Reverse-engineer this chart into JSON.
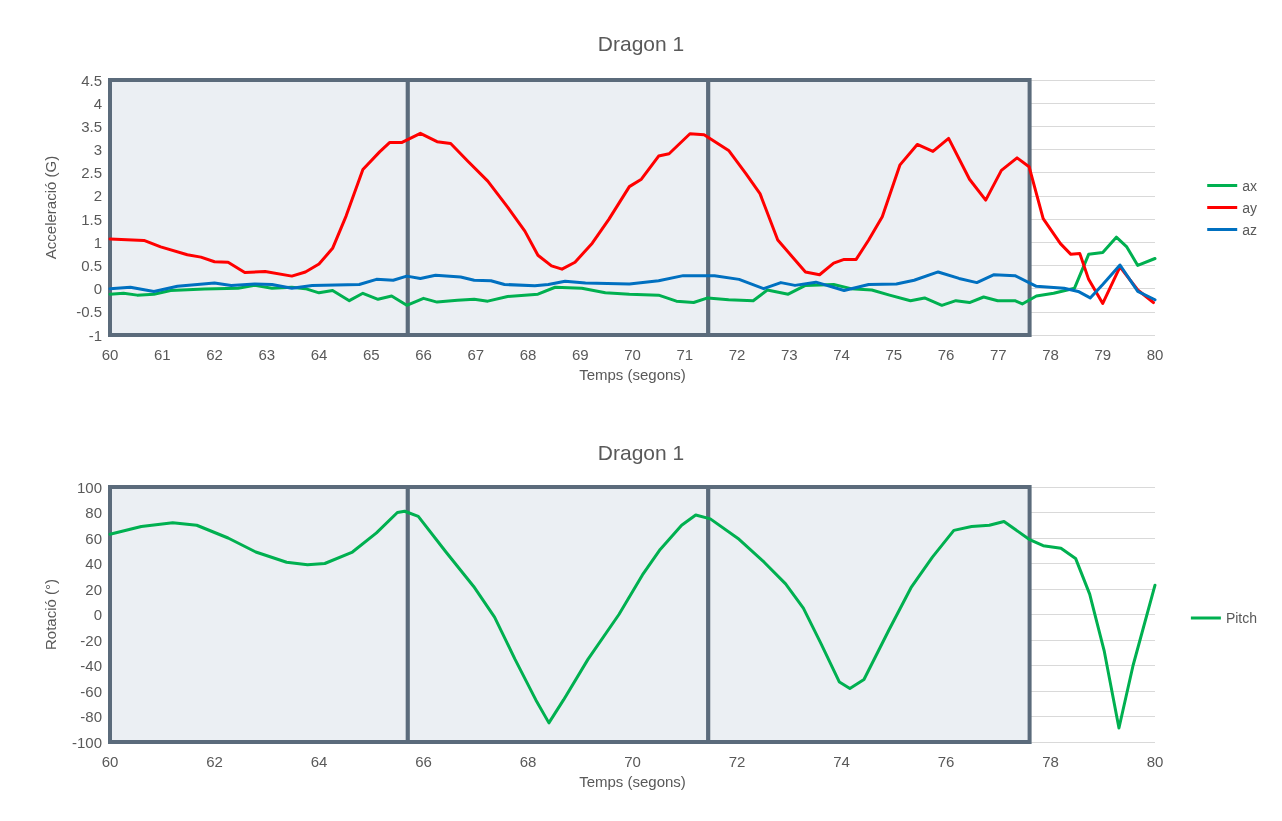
{
  "chart_data": [
    {
      "type": "line",
      "title": "Dragon 1",
      "xlabel": "Temps (segons)",
      "ylabel": "Acceleració (G)",
      "xlim": [
        60,
        80
      ],
      "xticks": [
        60,
        61,
        62,
        63,
        64,
        65,
        66,
        67,
        68,
        69,
        70,
        71,
        72,
        73,
        74,
        75,
        76,
        77,
        78,
        79,
        80
      ],
      "ylim": [
        -1,
        4.5
      ],
      "yticks": [
        -1,
        -0.5,
        0,
        0.5,
        1,
        1.5,
        2,
        2.5,
        3,
        3.5,
        4,
        4.5
      ],
      "grid": "y",
      "legend": "right",
      "marker": "none",
      "line_style": "solid",
      "bands": [
        {
          "axis": "x",
          "from": 60,
          "to": 65.7,
          "color": "#ebeff3"
        },
        {
          "axis": "x",
          "from": 65.7,
          "to": 71.45,
          "color": "#ebeff3"
        },
        {
          "axis": "x",
          "from": 71.45,
          "to": 77.6,
          "color": "#ebeff3"
        }
      ],
      "series": [
        {
          "name": "ax",
          "color": "#00b050",
          "x": [
            60,
            60.26,
            60.52,
            60.84,
            61.16,
            61.81,
            62.45,
            62.77,
            63.1,
            63.48,
            63.74,
            64.0,
            64.26,
            64.58,
            64.84,
            65.13,
            65.39,
            65.68,
            66.0,
            66.26,
            66.65,
            66.97,
            67.23,
            67.61,
            68.19,
            68.52,
            69.03,
            69.48,
            69.94,
            70.5,
            70.84,
            71.17,
            71.44,
            71.84,
            72.31,
            72.58,
            72.98,
            73.31,
            73.85,
            74.18,
            74.58,
            74.92,
            75.32,
            75.59,
            75.92,
            76.19,
            76.45,
            76.72,
            76.99,
            77.32,
            77.46,
            77.73,
            78.06,
            78.46,
            78.73,
            79.0,
            79.26,
            79.46,
            79.67,
            80.0
          ],
          "values": [
            -0.12,
            -0.1,
            -0.14,
            -0.12,
            -0.04,
            -0.01,
            0.01,
            0.07,
            0.01,
            0.03,
            0.0,
            -0.09,
            -0.04,
            -0.26,
            -0.1,
            -0.23,
            -0.16,
            -0.36,
            -0.21,
            -0.29,
            -0.25,
            -0.23,
            -0.27,
            -0.17,
            -0.12,
            0.03,
            0.01,
            -0.09,
            -0.12,
            -0.14,
            -0.27,
            -0.3,
            -0.2,
            -0.24,
            -0.26,
            -0.03,
            -0.12,
            0.07,
            0.09,
            0.0,
            -0.03,
            -0.14,
            -0.26,
            -0.2,
            -0.36,
            -0.26,
            -0.3,
            -0.18,
            -0.26,
            -0.26,
            -0.33,
            -0.16,
            -0.1,
            0.01,
            0.74,
            0.78,
            1.11,
            0.9,
            0.5,
            0.65
          ]
        },
        {
          "name": "ay",
          "color": "#ff0000",
          "x": [
            60,
            60.65,
            60.97,
            61.48,
            61.74,
            62.0,
            62.26,
            62.58,
            62.97,
            63.48,
            63.74,
            64.0,
            64.26,
            64.52,
            64.84,
            65.16,
            65.35,
            65.58,
            65.94,
            66.26,
            66.52,
            66.84,
            67.23,
            67.61,
            67.94,
            68.19,
            68.45,
            68.65,
            68.9,
            69.23,
            69.55,
            69.94,
            70.17,
            70.5,
            70.7,
            71.1,
            71.37,
            71.84,
            72.17,
            72.44,
            72.78,
            73.04,
            73.31,
            73.58,
            73.85,
            74.05,
            74.28,
            74.52,
            74.78,
            75.12,
            75.45,
            75.75,
            76.05,
            76.45,
            76.76,
            77.06,
            77.36,
            77.59,
            77.86,
            78.19,
            78.39,
            78.56,
            78.73,
            79.0,
            79.33,
            79.67,
            79.97
          ],
          "values": [
            1.07,
            1.04,
            0.9,
            0.73,
            0.68,
            0.58,
            0.57,
            0.35,
            0.37,
            0.27,
            0.36,
            0.53,
            0.87,
            1.57,
            2.57,
            2.95,
            3.15,
            3.15,
            3.35,
            3.17,
            3.13,
            2.76,
            2.32,
            1.76,
            1.24,
            0.72,
            0.49,
            0.42,
            0.57,
            0.98,
            1.5,
            2.2,
            2.36,
            2.86,
            2.91,
            3.34,
            3.32,
            2.98,
            2.48,
            2.05,
            1.05,
            0.71,
            0.36,
            0.3,
            0.55,
            0.63,
            0.63,
            1.05,
            1.55,
            2.67,
            3.11,
            2.96,
            3.24,
            2.36,
            1.91,
            2.55,
            2.82,
            2.63,
            1.51,
            0.97,
            0.74,
            0.76,
            0.2,
            -0.32,
            0.47,
            -0.03,
            -0.3
          ]
        },
        {
          "name": "az",
          "color": "#0070c0",
          "x": [
            60,
            60.39,
            60.84,
            61.29,
            62.0,
            62.32,
            62.77,
            63.1,
            63.48,
            63.87,
            64.77,
            65.1,
            65.42,
            65.68,
            65.94,
            66.23,
            66.71,
            66.97,
            67.29,
            67.55,
            68.13,
            68.39,
            68.71,
            69.1,
            69.94,
            70.5,
            70.97,
            71.57,
            72.04,
            72.51,
            72.84,
            73.11,
            73.51,
            74.05,
            74.52,
            75.05,
            75.39,
            75.85,
            76.25,
            76.59,
            76.92,
            77.32,
            77.73,
            78.26,
            78.53,
            78.76,
            79.0,
            79.33,
            79.67,
            80.0
          ],
          "values": [
            0.0,
            0.03,
            -0.06,
            0.05,
            0.12,
            0.07,
            0.1,
            0.09,
            0.01,
            0.07,
            0.09,
            0.2,
            0.18,
            0.27,
            0.22,
            0.29,
            0.25,
            0.18,
            0.17,
            0.09,
            0.06,
            0.09,
            0.16,
            0.12,
            0.1,
            0.17,
            0.28,
            0.28,
            0.2,
            0.0,
            0.13,
            0.07,
            0.14,
            -0.04,
            0.09,
            0.1,
            0.18,
            0.36,
            0.22,
            0.13,
            0.3,
            0.28,
            0.05,
            0.01,
            -0.06,
            -0.2,
            0.09,
            0.51,
            -0.06,
            -0.24
          ]
        }
      ]
    },
    {
      "type": "line",
      "title": "Dragon 1",
      "xlabel": "Temps (segons)",
      "ylabel": "Rotació (°)",
      "xlim": [
        60,
        80
      ],
      "xticks": [
        60,
        62,
        64,
        66,
        68,
        70,
        72,
        74,
        76,
        78,
        80
      ],
      "ylim": [
        -100,
        100
      ],
      "yticks": [
        -100,
        -80,
        -60,
        -40,
        -20,
        0,
        20,
        40,
        60,
        80,
        100
      ],
      "grid": "y",
      "legend": "right",
      "marker": "none",
      "line_style": "solid",
      "bands": [
        {
          "axis": "x",
          "from": 60,
          "to": 65.7,
          "color": "#ebeff3"
        },
        {
          "axis": "x",
          "from": 65.7,
          "to": 71.45,
          "color": "#ebeff3"
        },
        {
          "axis": "x",
          "from": 71.45,
          "to": 77.6,
          "color": "#ebeff3"
        }
      ],
      "series": [
        {
          "name": "Pitch",
          "color": "#00b050",
          "x": [
            60,
            60.6,
            61.2,
            61.66,
            62.26,
            62.79,
            63.38,
            63.78,
            64.11,
            64.64,
            65.1,
            65.5,
            65.64,
            65.9,
            66.43,
            66.96,
            67.36,
            67.75,
            68.15,
            68.4,
            68.68,
            69.15,
            69.74,
            70.19,
            70.53,
            70.94,
            71.21,
            71.49,
            72.04,
            72.52,
            72.93,
            73.27,
            73.61,
            73.96,
            74.16,
            74.43,
            74.91,
            75.33,
            75.74,
            76.15,
            76.49,
            76.83,
            77.11,
            77.59,
            77.86,
            78.2,
            78.48,
            78.75,
            79.03,
            79.31,
            79.58,
            80.0
          ],
          "values": [
            63,
            69,
            72,
            70,
            60,
            49,
            41,
            39,
            40,
            49,
            64,
            80,
            81,
            77,
            49,
            22,
            -2,
            -35,
            -67,
            -85,
            -67,
            -35,
            0,
            31,
            51,
            70,
            78,
            75,
            59,
            41,
            24,
            5,
            -23,
            -53,
            -58,
            -51,
            -12,
            21,
            45,
            66,
            69,
            70,
            73,
            59,
            54,
            52,
            44,
            16,
            -29,
            -89,
            -40,
            23
          ]
        }
      ]
    }
  ]
}
